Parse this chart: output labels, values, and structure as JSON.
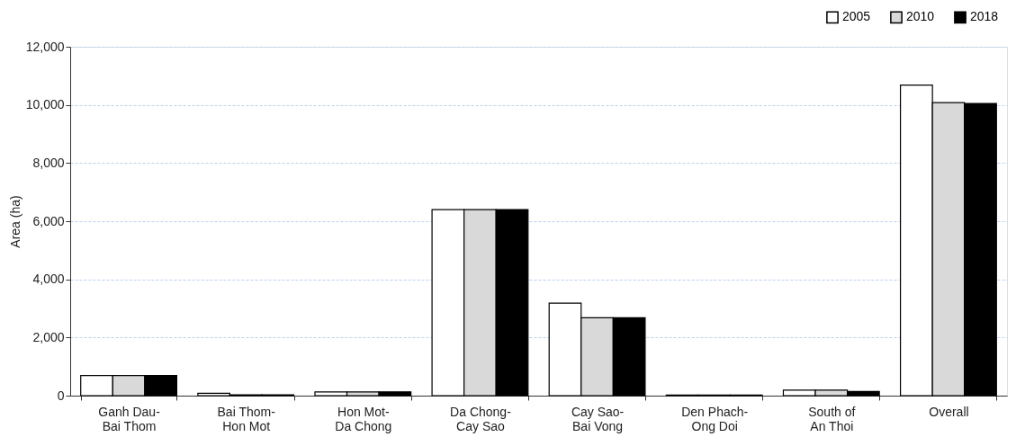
{
  "chart_data": {
    "type": "bar",
    "ylabel": "Area (ha)",
    "categories": [
      "Ganh Dau-\nBai Thom",
      "Bai Thom-\nHon Mot",
      "Hon Mot-\nDa Chong",
      "Da Chong-\nCay Sao",
      "Cay Sao-\nBai Vong",
      "Den Phach-\nOng Doi",
      "South of\nAn Thoi",
      "Overall"
    ],
    "series": [
      {
        "name": "2005",
        "color": "#ffffff",
        "values": [
          690,
          80,
          130,
          6400,
          3180,
          20,
          190,
          10680
        ]
      },
      {
        "name": "2010",
        "color": "#d9d9d9",
        "values": [
          690,
          30,
          130,
          6400,
          2680,
          20,
          190,
          10080
        ]
      },
      {
        "name": "2018",
        "color": "#000000",
        "values": [
          690,
          30,
          130,
          6400,
          2680,
          20,
          140,
          10050
        ]
      }
    ],
    "ylim": [
      0,
      12000
    ],
    "yticks": [
      0,
      {
        "value": 2000,
        "label": "2,000"
      },
      {
        "value": 4000,
        "label": "4,000"
      },
      {
        "value": 6000,
        "label": "6,000"
      },
      {
        "value": 8000,
        "label": "8,000"
      },
      {
        "value": 10000,
        "label": "10,000"
      },
      {
        "value": 12000,
        "label": "12,000"
      }
    ],
    "grid": "y",
    "legend": "top right"
  }
}
